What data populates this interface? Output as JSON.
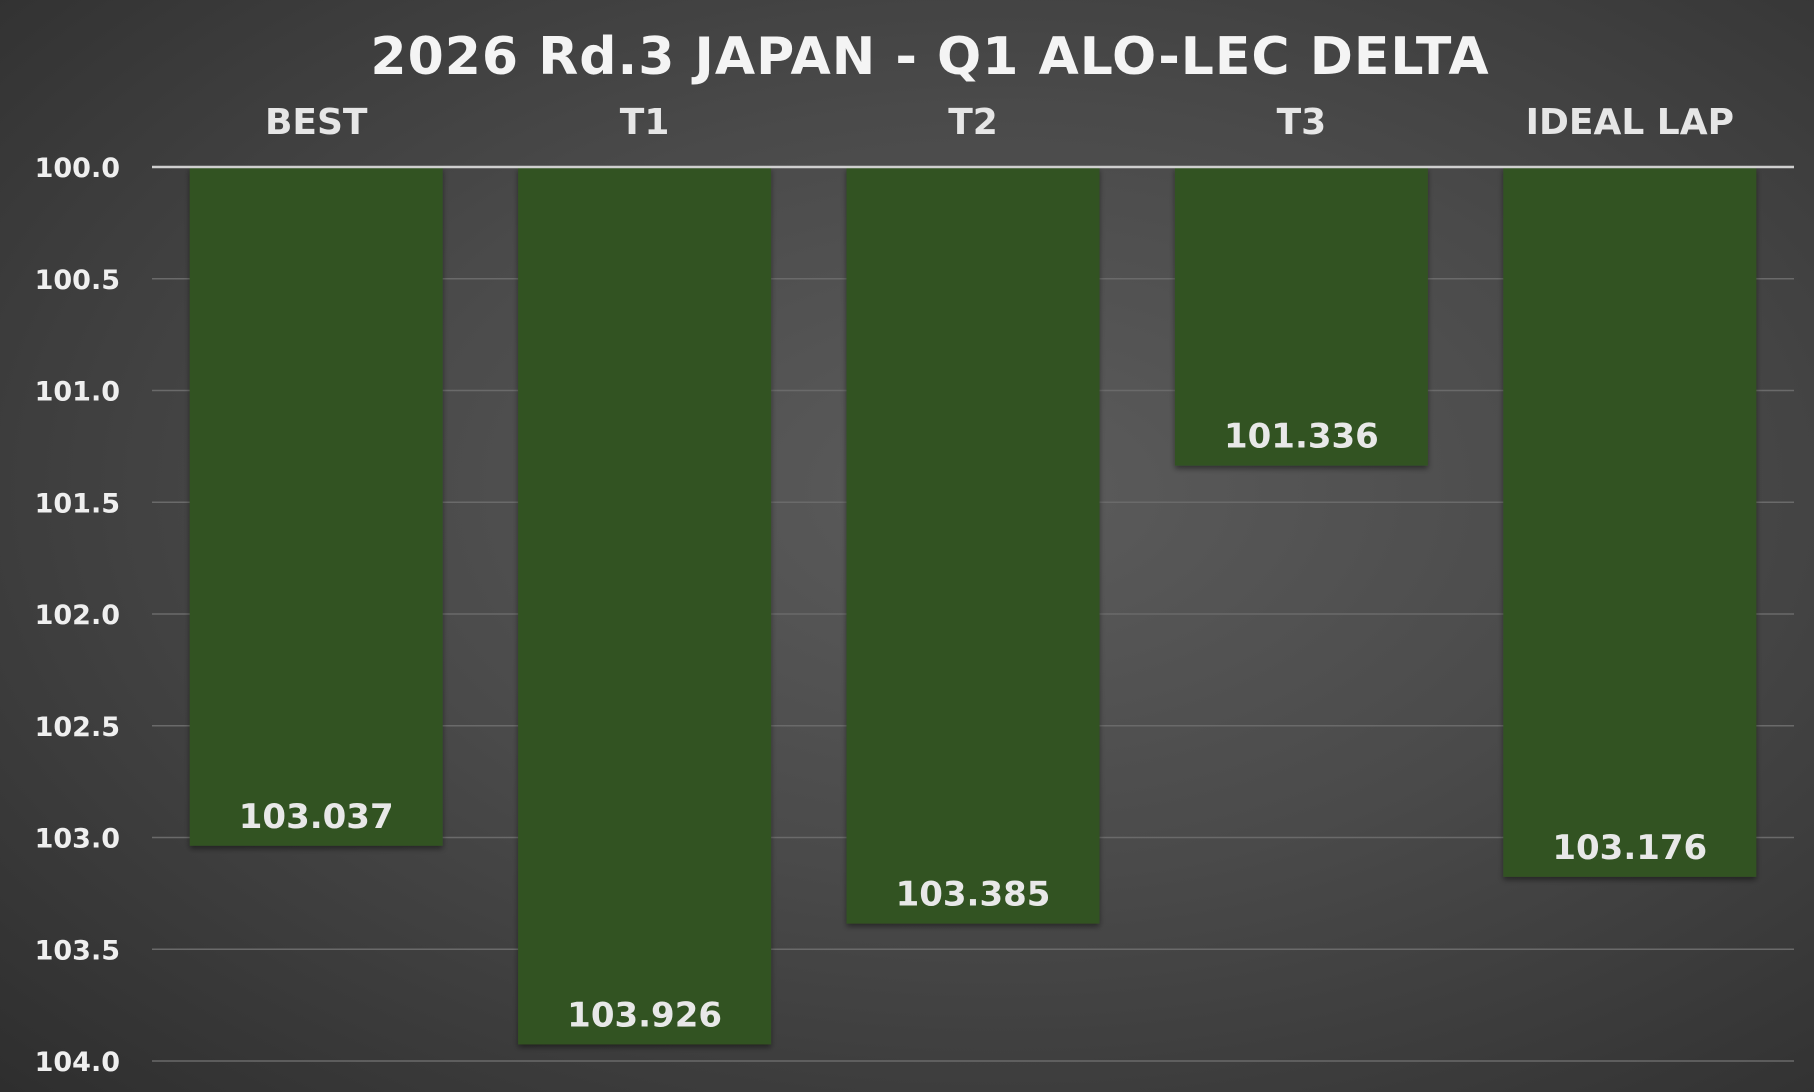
{
  "chart_data": {
    "type": "bar",
    "title": "2026 Rd.3 JAPAN - Q1 ALO-LEC DELTA",
    "categories": [
      "BEST",
      "T1",
      "T2",
      "T3",
      "IDEAL LAP"
    ],
    "values": [
      103.037,
      103.926,
      103.385,
      101.336,
      103.176
    ],
    "value_labels": [
      "103.037",
      "103.926",
      "103.385",
      "101.336",
      "103.176"
    ],
    "y_ticks": [
      "100.0",
      "100.5",
      "101.0",
      "101.5",
      "102.0",
      "102.5",
      "103.0",
      "103.5",
      "104.0"
    ],
    "ylim": [
      100.0,
      104.0
    ],
    "y_axis_inverted": true,
    "category_axis_position": "top",
    "grid": true,
    "xlabel": "",
    "ylabel": "",
    "colors": {
      "bar": "#335221",
      "grid": "#6a6a6a",
      "baseline": "#cfcfcf"
    }
  }
}
